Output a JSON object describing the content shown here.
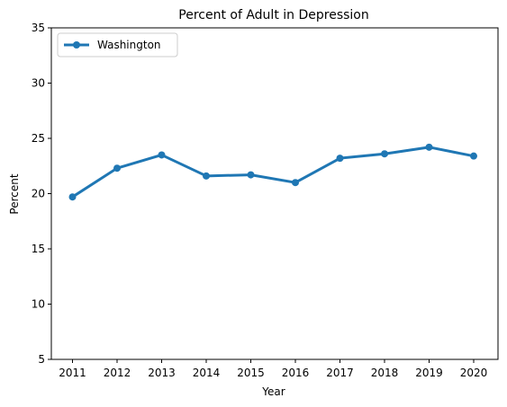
{
  "chart_data": {
    "type": "line",
    "title": "Percent of Adult in Depression",
    "xlabel": "Year",
    "ylabel": "Percent",
    "x": [
      "2011",
      "2012",
      "2013",
      "2014",
      "2015",
      "2016",
      "2017",
      "2018",
      "2019",
      "2020"
    ],
    "ylim": [
      5,
      35
    ],
    "yticks": [
      5,
      10,
      15,
      20,
      25,
      30,
      35
    ],
    "grid": false,
    "legend_position": "top-left",
    "series": [
      {
        "name": "Washington",
        "color": "#1f77b4",
        "marker": "circle",
        "values": [
          19.7,
          22.3,
          23.5,
          21.6,
          21.7,
          21.0,
          23.2,
          23.6,
          24.2,
          23.4
        ]
      }
    ]
  }
}
